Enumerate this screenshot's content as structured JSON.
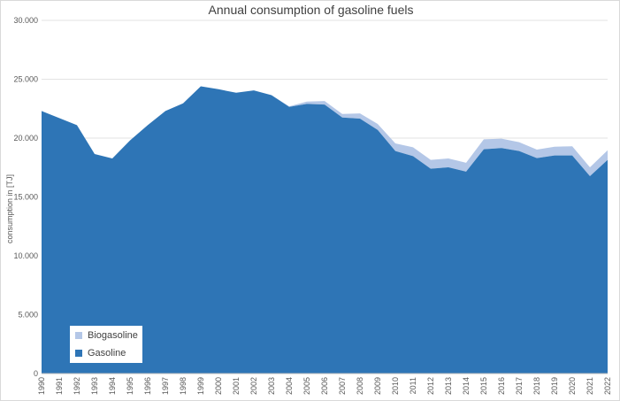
{
  "chart_data": {
    "type": "area",
    "stacked": true,
    "title": "Annual consumption of gasoline fuels",
    "xlabel": "",
    "ylabel": "consumption in [TJ]",
    "ylim": [
      0,
      30000
    ],
    "yticks": [
      "0",
      "5.000",
      "10.000",
      "15.000",
      "20.000",
      "25.000",
      "30.000"
    ],
    "grid": true,
    "legend_position": "bottom-left",
    "categories": [
      "1990",
      "1991",
      "1992",
      "1993",
      "1994",
      "1995",
      "1996",
      "1997",
      "1998",
      "1999",
      "2000",
      "2001",
      "2002",
      "2003",
      "2004",
      "2005",
      "2006",
      "2007",
      "2008",
      "2009",
      "2010",
      "2011",
      "2012",
      "2013",
      "2014",
      "2015",
      "2016",
      "2017",
      "2018",
      "2019",
      "2020",
      "2021",
      "2022"
    ],
    "series": [
      {
        "name": "Gasoline",
        "color": "#2E75B6",
        "values": [
          22300,
          21700,
          21100,
          18650,
          18270,
          19800,
          21100,
          22300,
          22950,
          24400,
          24150,
          23850,
          24050,
          23650,
          22650,
          22900,
          22850,
          21750,
          21650,
          20700,
          18900,
          18470,
          17400,
          17520,
          17150,
          19050,
          19150,
          18900,
          18300,
          18520,
          18520,
          16770,
          18150
        ]
      },
      {
        "name": "Biogasoline",
        "color": "#B4C7E7",
        "values": [
          0,
          0,
          0,
          0,
          0,
          0,
          0,
          0,
          0,
          0,
          0,
          0,
          0,
          0,
          50,
          200,
          300,
          300,
          450,
          500,
          650,
          750,
          750,
          750,
          750,
          850,
          800,
          750,
          720,
          750,
          780,
          750,
          820
        ]
      }
    ]
  }
}
